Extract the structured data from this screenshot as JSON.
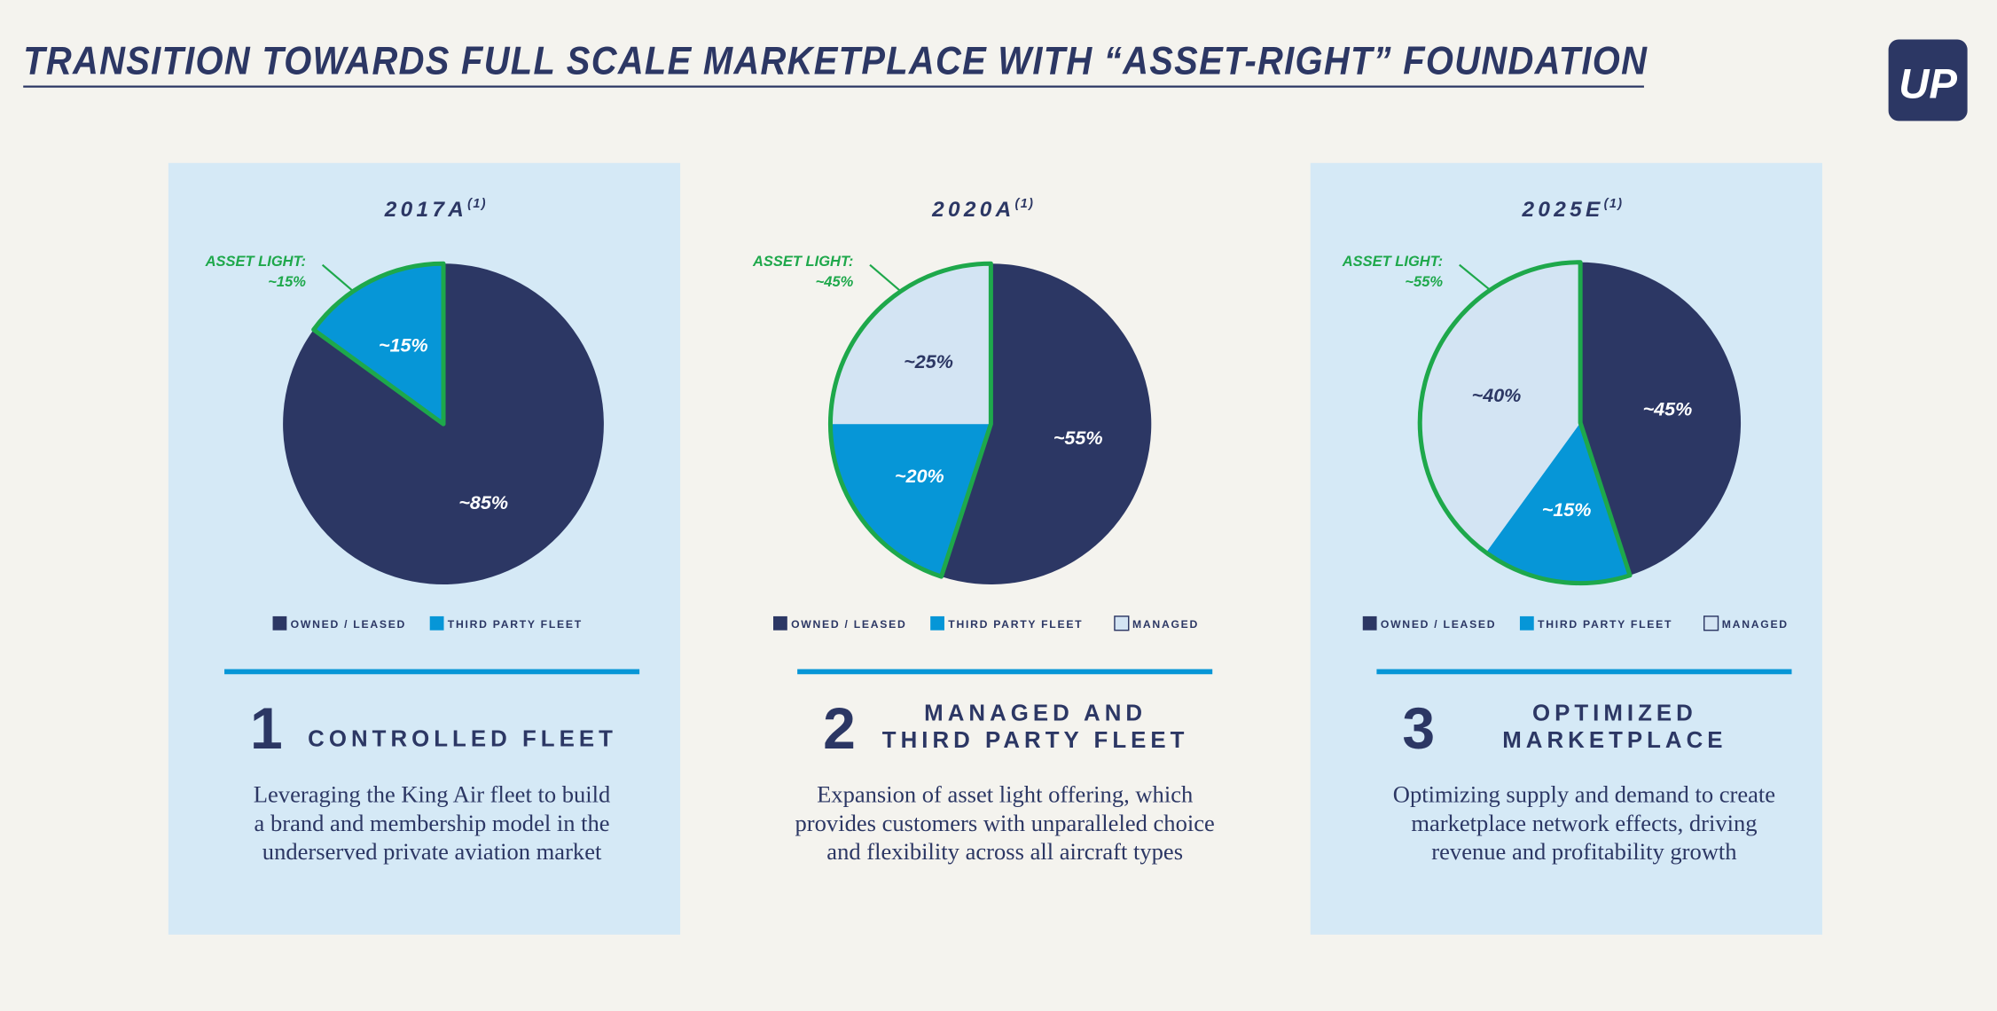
{
  "header": {
    "title": "TRANSITION TOWARDS FULL SCALE MARKETPLACE WITH “ASSET-RIGHT” FOUNDATION",
    "logo": "UP"
  },
  "chart_data": [
    {
      "type": "pie",
      "title": "2017A",
      "title_note": "(1)",
      "categories": [
        "OWNED / LEASED",
        "THIRD PARTY FLEET"
      ],
      "values": [
        85,
        15
      ],
      "value_labels": [
        "~85%",
        "~15%"
      ],
      "colors": [
        "#2c3764",
        "#0696d7"
      ],
      "annotation": {
        "lines": [
          "ASSET LIGHT:",
          "~15%"
        ],
        "color": "#1ea84b"
      }
    },
    {
      "type": "pie",
      "title": "2020A",
      "title_note": "(1)",
      "categories": [
        "OWNED / LEASED",
        "THIRD PARTY FLEET",
        "MANAGED"
      ],
      "values": [
        55,
        20,
        25
      ],
      "value_labels": [
        "~55%",
        "~20%",
        "~25%"
      ],
      "colors": [
        "#2c3764",
        "#0696d7",
        "#d3e4f3"
      ],
      "annotation": {
        "lines": [
          "ASSET LIGHT:",
          "~45%"
        ],
        "color": "#1ea84b"
      }
    },
    {
      "type": "pie",
      "title": "2025E",
      "title_note": "(1)",
      "categories": [
        "OWNED / LEASED",
        "THIRD PARTY FLEET",
        "MANAGED"
      ],
      "values": [
        45,
        15,
        40
      ],
      "value_labels": [
        "~45%",
        "~15%",
        "~40%"
      ],
      "colors": [
        "#2c3764",
        "#0696d7",
        "#d3e4f3"
      ],
      "annotation": {
        "lines": [
          "ASSET LIGHT:",
          "~55%"
        ],
        "color": "#1ea84b"
      }
    }
  ],
  "panels": [
    {
      "number": "1",
      "heading": [
        "CONTROLLED FLEET"
      ],
      "description": [
        "Leveraging the King Air fleet to build",
        "a brand and membership model in the",
        "underserved private aviation market"
      ]
    },
    {
      "number": "2",
      "heading": [
        "MANAGED AND",
        "THIRD PARTY FLEET"
      ],
      "description": [
        "Expansion of asset light offering, which",
        "provides customers with unparalleled choice",
        "and flexibility across all aircraft types"
      ]
    },
    {
      "number": "3",
      "heading": [
        "OPTIMIZED",
        "MARKETPLACE"
      ],
      "description": [
        "Optimizing supply and demand to create",
        "marketplace network effects, driving",
        "revenue and profitability growth"
      ]
    }
  ]
}
